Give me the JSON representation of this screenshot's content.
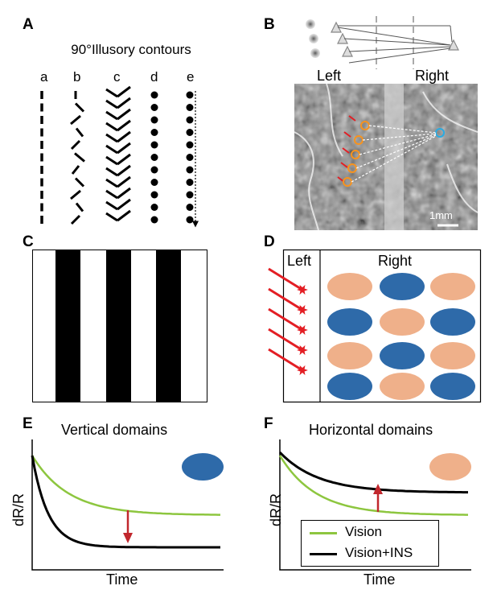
{
  "panels": {
    "a": {
      "letter": "A",
      "title": "90°Illusory contours",
      "columns": [
        "a",
        "b",
        "c",
        "d",
        "e"
      ]
    },
    "b": {
      "letter": "B",
      "left_label": "Left",
      "right_label": "Right",
      "scale_bar": "1mm"
    },
    "c": {
      "letter": "C"
    },
    "d": {
      "letter": "D",
      "left_label": "Left",
      "right_label": "Right",
      "domain_colors": {
        "blue": "#2e6aa9",
        "orange": "#efb08a"
      },
      "domain_grid": [
        [
          "orange",
          "blue",
          "orange"
        ],
        [
          "blue",
          "orange",
          "blue"
        ],
        [
          "orange",
          "blue",
          "orange"
        ],
        [
          "blue",
          "orange",
          "blue"
        ]
      ]
    },
    "e": {
      "letter": "E",
      "title": "Vertical domains",
      "ylabel": "dR/R",
      "xlabel": "Time",
      "icon_color": "#2e6aa9"
    },
    "f": {
      "letter": "F",
      "title": "Horizontal domains",
      "ylabel": "dR/R",
      "xlabel": "Time",
      "icon_color": "#efb08a",
      "legend": [
        {
          "label": "Vision",
          "color": "#8dc63f"
        },
        {
          "label": "Vision+INS",
          "color": "#000000"
        }
      ]
    }
  },
  "colors": {
    "vision": "#8dc63f",
    "vision_ins": "#000000",
    "arrow": "#c1272d",
    "laser": "#e31e24"
  }
}
